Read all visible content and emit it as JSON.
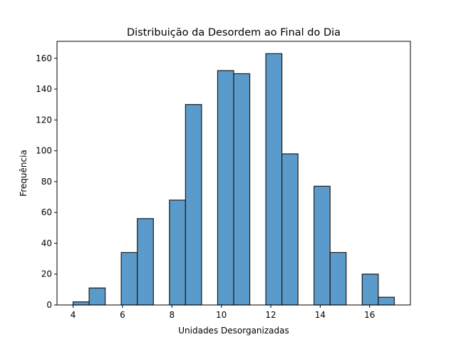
{
  "chart_data": {
    "type": "bar",
    "title": "Distribuição da Desordem ao Final do Dia",
    "xlabel": "Unidades Desorganizadas",
    "ylabel": "Frequência",
    "xlim": [
      3.35,
      17.65
    ],
    "ylim": [
      0,
      171
    ],
    "grid": false,
    "legend": "none",
    "bar_color": "#5b9bcb",
    "edge_color": "#1a1a1a",
    "x_ticks": [
      4,
      6,
      8,
      10,
      12,
      14,
      16
    ],
    "y_ticks": [
      0,
      20,
      40,
      60,
      80,
      100,
      120,
      140,
      160
    ],
    "bins": [
      {
        "x0": 4.0,
        "x1": 4.65,
        "value": 2
      },
      {
        "x0": 4.65,
        "x1": 5.3,
        "value": 11
      },
      {
        "x0": 5.3,
        "x1": 5.95,
        "value": 0
      },
      {
        "x0": 5.95,
        "x1": 6.6,
        "value": 34
      },
      {
        "x0": 6.6,
        "x1": 7.25,
        "value": 56
      },
      {
        "x0": 7.25,
        "x1": 7.9,
        "value": 0
      },
      {
        "x0": 7.9,
        "x1": 8.55,
        "value": 68
      },
      {
        "x0": 8.55,
        "x1": 9.2,
        "value": 130
      },
      {
        "x0": 9.2,
        "x1": 9.85,
        "value": 0
      },
      {
        "x0": 9.85,
        "x1": 10.5,
        "value": 152
      },
      {
        "x0": 10.5,
        "x1": 11.15,
        "value": 150
      },
      {
        "x0": 11.15,
        "x1": 11.8,
        "value": 0
      },
      {
        "x0": 11.8,
        "x1": 12.45,
        "value": 163
      },
      {
        "x0": 12.45,
        "x1": 13.1,
        "value": 98
      },
      {
        "x0": 13.1,
        "x1": 13.75,
        "value": 0
      },
      {
        "x0": 13.75,
        "x1": 14.4,
        "value": 77
      },
      {
        "x0": 14.4,
        "x1": 15.05,
        "value": 34
      },
      {
        "x0": 15.05,
        "x1": 15.7,
        "value": 0
      },
      {
        "x0": 15.7,
        "x1": 16.35,
        "value": 20
      },
      {
        "x0": 16.35,
        "x1": 17.0,
        "value": 5
      }
    ]
  }
}
